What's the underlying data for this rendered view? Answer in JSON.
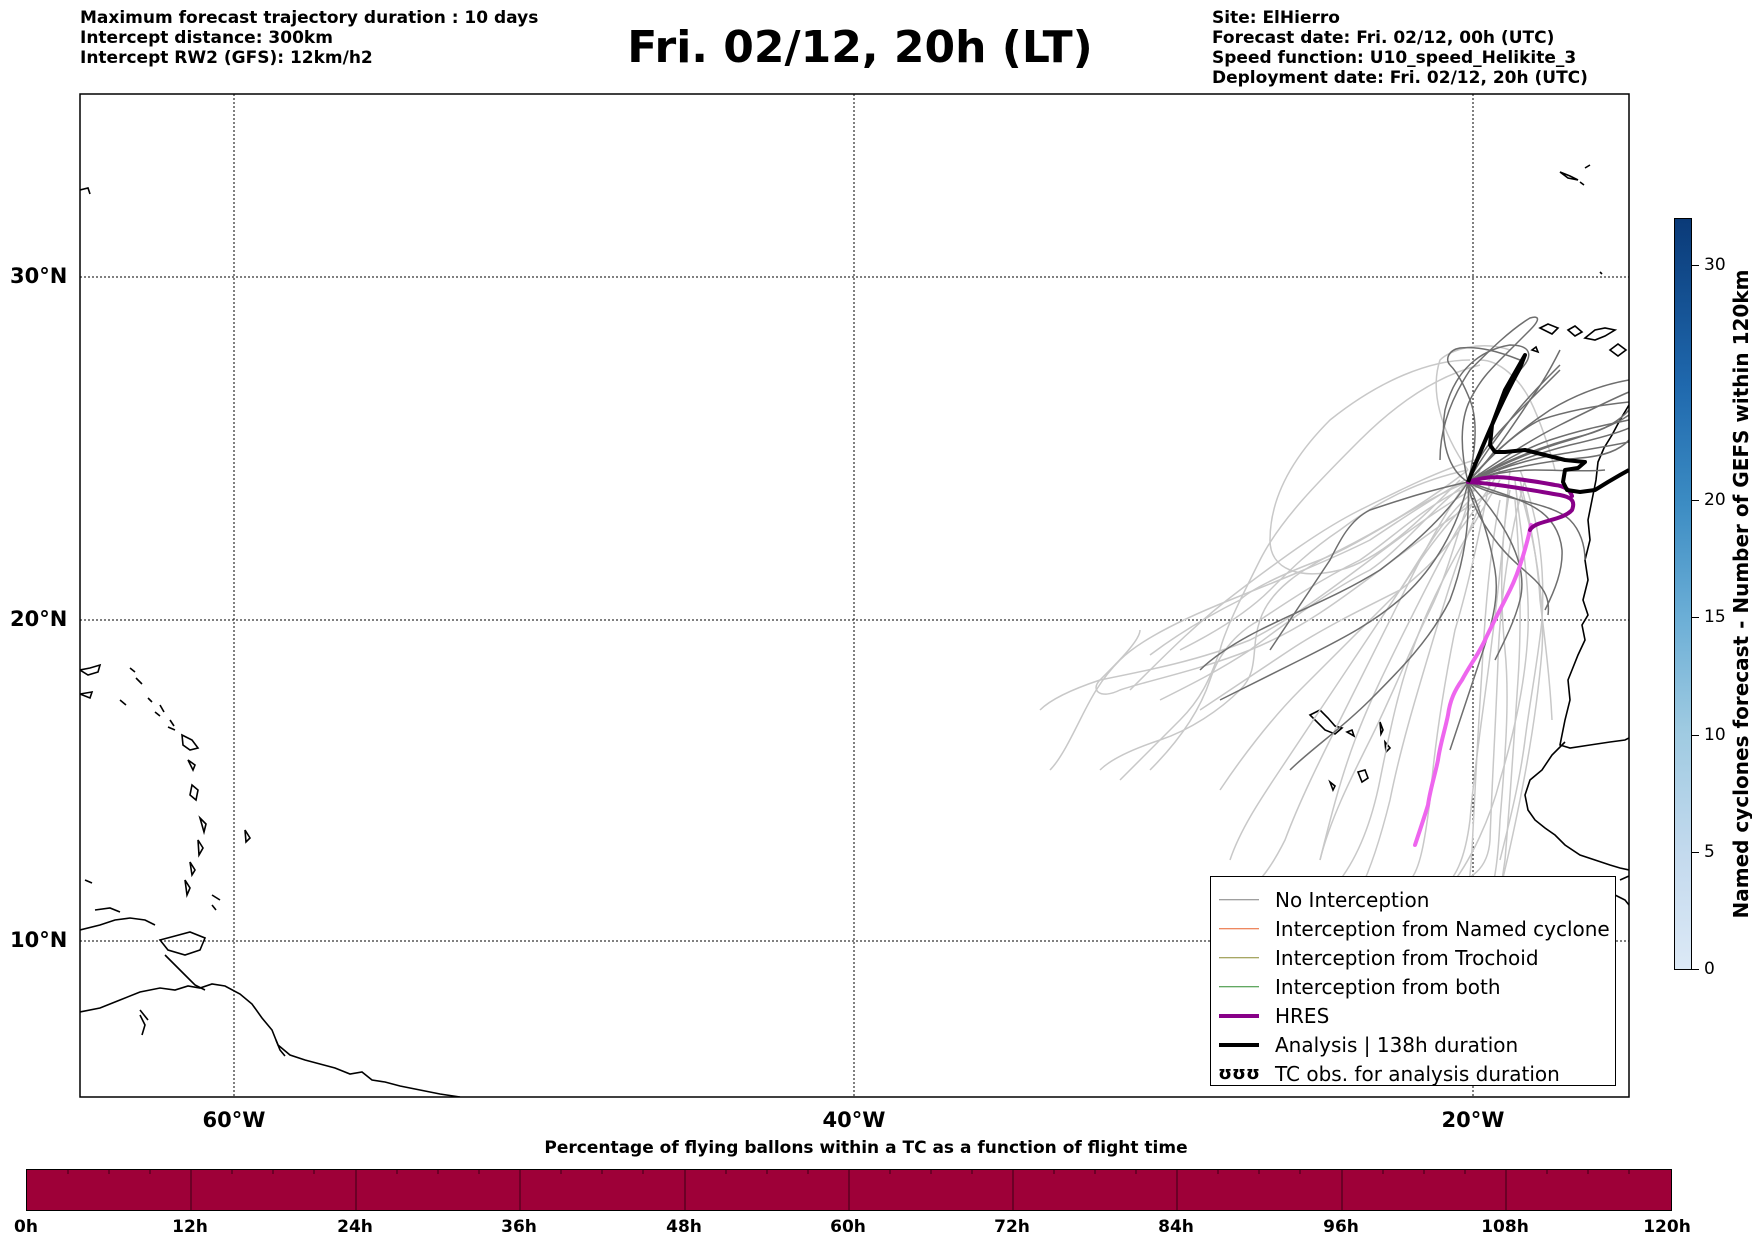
{
  "header": {
    "left": [
      "Maximum forecast trajectory duration : 10 days",
      "Intercept distance: 300km",
      "Intercept RW2 (GFS):  12km/h2"
    ],
    "title": "Fri. 02/12, 20h (LT)",
    "right": [
      "Site: ElHierro",
      "Forecast date: Fri. 02/12, 00h (UTC)",
      "Speed function: U10_speed_Helikite_3",
      "Deployment date: Fri. 02/12, 20h (UTC)"
    ]
  },
  "map": {
    "lat_labels": [
      "30°N",
      "20°N",
      "10°N"
    ],
    "lon_labels": [
      "60°W",
      "40°W",
      "20°W"
    ],
    "lat_gridlines": [
      30,
      20,
      10
    ],
    "lon_gridlines": [
      -60,
      -40,
      -20
    ],
    "extent": {
      "lon_min": -65,
      "lon_max": -15,
      "lat_min": 5.5,
      "lat_max": 35
    }
  },
  "legend": {
    "items": [
      {
        "label": "No Interception",
        "color": "#808080",
        "style": "thin"
      },
      {
        "label": "Interception from Named cyclone",
        "color": "#e8602c",
        "style": "thin"
      },
      {
        "label": "Interception from Trochoid",
        "color": "#8a8a30",
        "style": "thin"
      },
      {
        "label": "Interception from both",
        "color": "#2e8b2e",
        "style": "thin"
      },
      {
        "label": "HRES",
        "color": "#880088",
        "style": "thick"
      },
      {
        "label": "Analysis | 138h duration",
        "color": "#000000",
        "style": "thick"
      },
      {
        "label": "TC obs. for analysis duration",
        "color": "#000000",
        "style": "glyph",
        "glyph": "ʊʊʊ"
      }
    ]
  },
  "colorbar_right": {
    "title": "Named cyclones forecast - Number of GEFS within 120km",
    "ticks": [
      "0",
      "5",
      "10",
      "15",
      "20",
      "30"
    ],
    "tick_values": [
      0,
      5,
      10,
      15,
      20,
      30
    ],
    "max": 32,
    "color_low": "#dce9f6",
    "color_high": "#0a3a78"
  },
  "colorbar_bottom": {
    "title": "Percentage of flying ballons within a TC as a function of flight time",
    "ticks": [
      "0h",
      "12h",
      "24h",
      "36h",
      "48h",
      "60h",
      "72h",
      "84h",
      "96h",
      "108h",
      "120h"
    ],
    "fill_color": "#9e0038"
  },
  "colors": {
    "ensemble_gray": "#777777",
    "ensemble_light": "#c8c8c8",
    "hres": "#880088",
    "hres_light": "#ee66ee",
    "analysis": "#000000"
  }
}
